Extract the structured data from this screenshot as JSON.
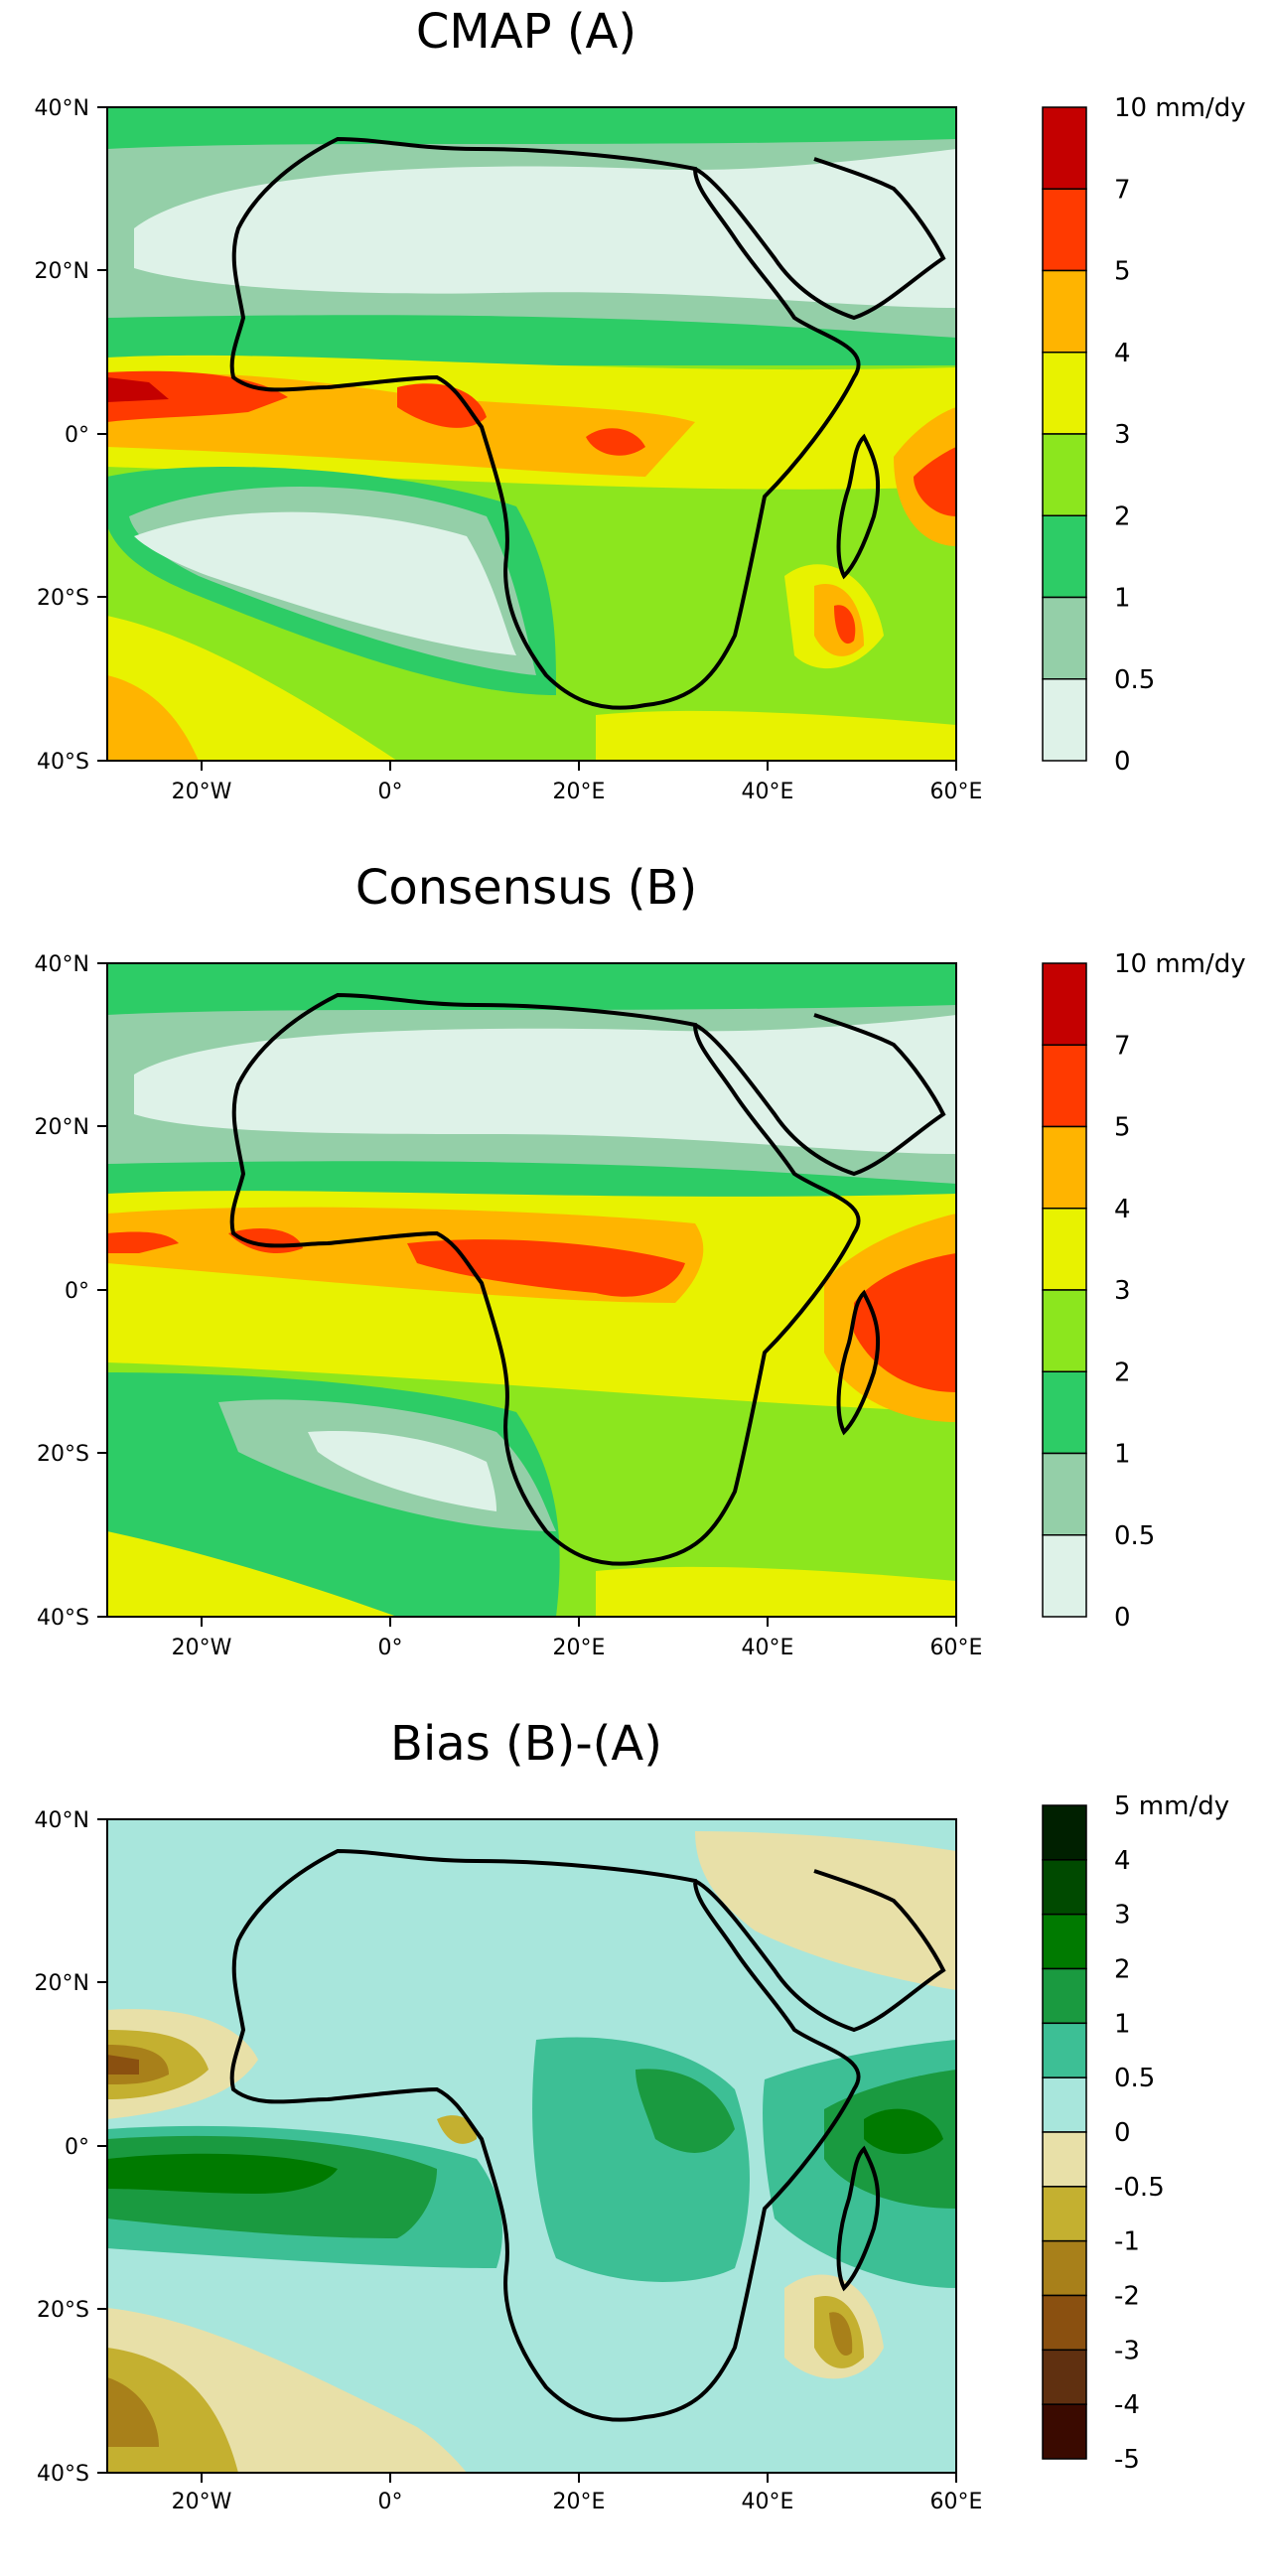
{
  "panels": [
    {
      "title": "CMAP (A)",
      "colorbar": {
        "labels": [
          "10 mm/dy",
          "7",
          "5",
          "4",
          "3",
          "2",
          "1",
          "0.5",
          "0"
        ],
        "colors": [
          "#c40000",
          "#ff3a00",
          "#ffb400",
          "#e8f200",
          "#8ce61e",
          "#2dcc66",
          "#94cfa8",
          "#def2e8"
        ]
      }
    },
    {
      "title": "Consensus (B)",
      "colorbar": {
        "labels": [
          "10 mm/dy",
          "7",
          "5",
          "4",
          "3",
          "2",
          "1",
          "0.5",
          "0"
        ],
        "colors": [
          "#c40000",
          "#ff3a00",
          "#ffb400",
          "#e8f200",
          "#8ce61e",
          "#2dcc66",
          "#94cfa8",
          "#def2e8"
        ]
      }
    },
    {
      "title": "Bias (B)-(A)",
      "colorbar": {
        "labels": [
          "5 mm/dy",
          "4",
          "3",
          "2",
          "1",
          "0.5",
          "0",
          "-0.5",
          "-1",
          "-2",
          "-3",
          "-4",
          "-5"
        ],
        "colors": [
          "#002000",
          "#004a00",
          "#007a00",
          "#1a9a40",
          "#3dbf95",
          "#a8e6dc",
          "#e8e0a8",
          "#c4b030",
          "#a8801a",
          "#8a5010",
          "#603010",
          "#3a0a00"
        ]
      }
    }
  ],
  "axes": {
    "lat_labels": [
      "40°N",
      "20°N",
      "0°",
      "20°S",
      "40°S"
    ],
    "lon_labels": [
      "20°W",
      "0°",
      "20°E",
      "40°E",
      "60°E"
    ]
  }
}
